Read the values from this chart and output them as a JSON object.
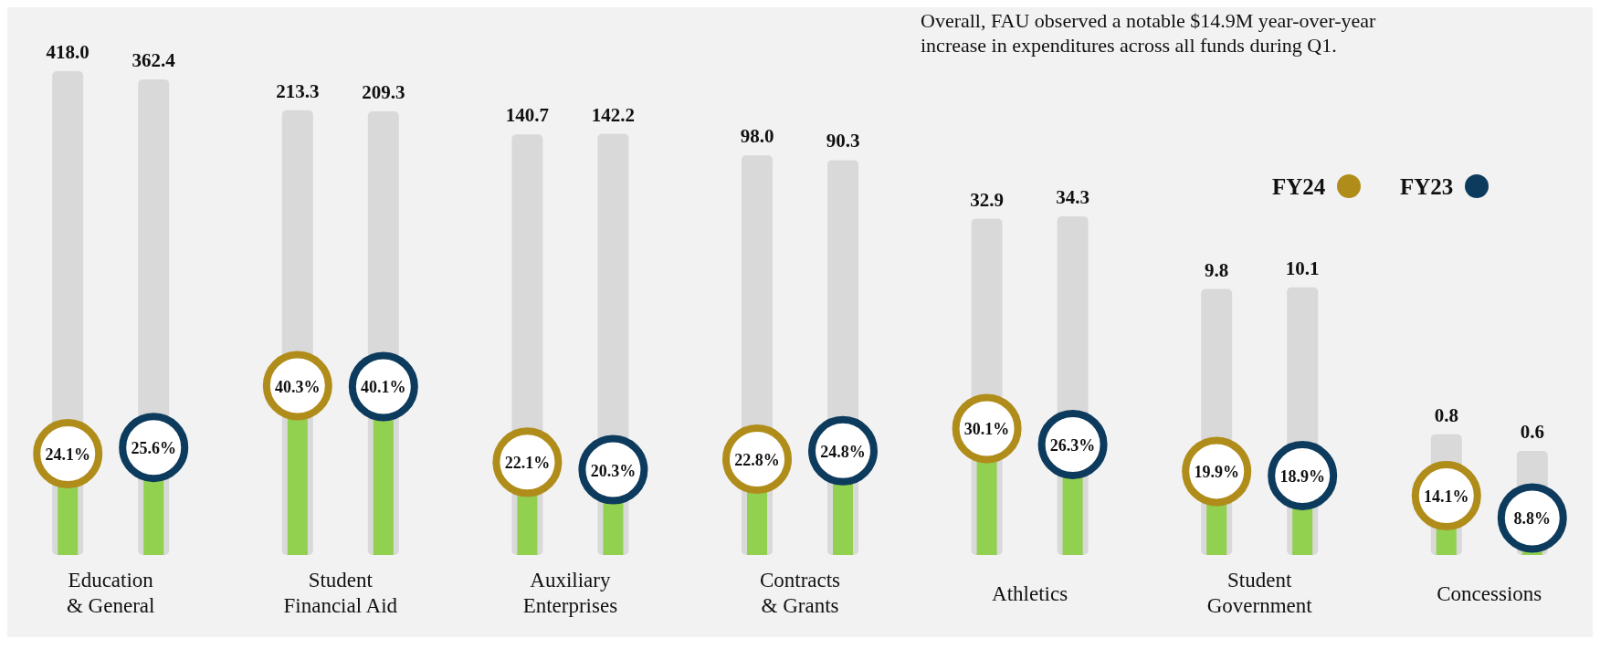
{
  "chart_data": {
    "type": "bar",
    "categories": [
      "Education\n& General",
      "Student\nFinancial Aid",
      "Auxiliary\nEnterprises",
      "Contracts\n& Grants",
      "Athletics",
      "Student\nGovernment",
      "Concessions"
    ],
    "series": [
      {
        "color": "#d9d9d9",
        "values": [
          418.0,
          213.3,
          140.7,
          98.0,
          32.9,
          9.8,
          0.8
        ],
        "value_labels": [
          "418.0",
          "213.3",
          "140.7",
          "98.0",
          "32.9",
          "9.8",
          "0.8"
        ]
      },
      {
        "color": "#d9d9d9",
        "values": [
          362.4,
          209.3,
          142.2,
          90.3,
          34.3,
          10.1,
          0.6
        ],
        "value_labels": [
          "362.4",
          "209.3",
          "142.2",
          "90.3",
          "34.3",
          "10.1",
          "0.6"
        ]
      },
      {
        "type": "lollipop",
        "name": "FY24",
        "color": "#b08d1a",
        "axis": "y2",
        "values": [
          24.1,
          40.3,
          22.1,
          22.8,
          30.1,
          19.9,
          14.1
        ],
        "value_labels": [
          "24.1%",
          "40.3%",
          "22.1%",
          "22.8%",
          "30.1%",
          "19.9%",
          "14.1%"
        ]
      },
      {
        "type": "lollipop",
        "name": "FY23",
        "color": "#0d3b5e",
        "axis": "y2",
        "values": [
          25.6,
          40.1,
          20.3,
          24.8,
          26.3,
          18.9,
          8.8
        ],
        "value_labels": [
          "25.6%",
          "40.1%",
          "20.3%",
          "24.8%",
          "26.3%",
          "18.9%",
          "8.8%"
        ]
      }
    ],
    "log": true,
    "ylim": [
      0.1,
      418
    ],
    "tick_labels": "x",
    "legend": "top right",
    "annotations": [
      "Overall, FAU observed a notable $14.9M year-over-year increase in expenditures across all funds during Q1."
    ]
  }
}
